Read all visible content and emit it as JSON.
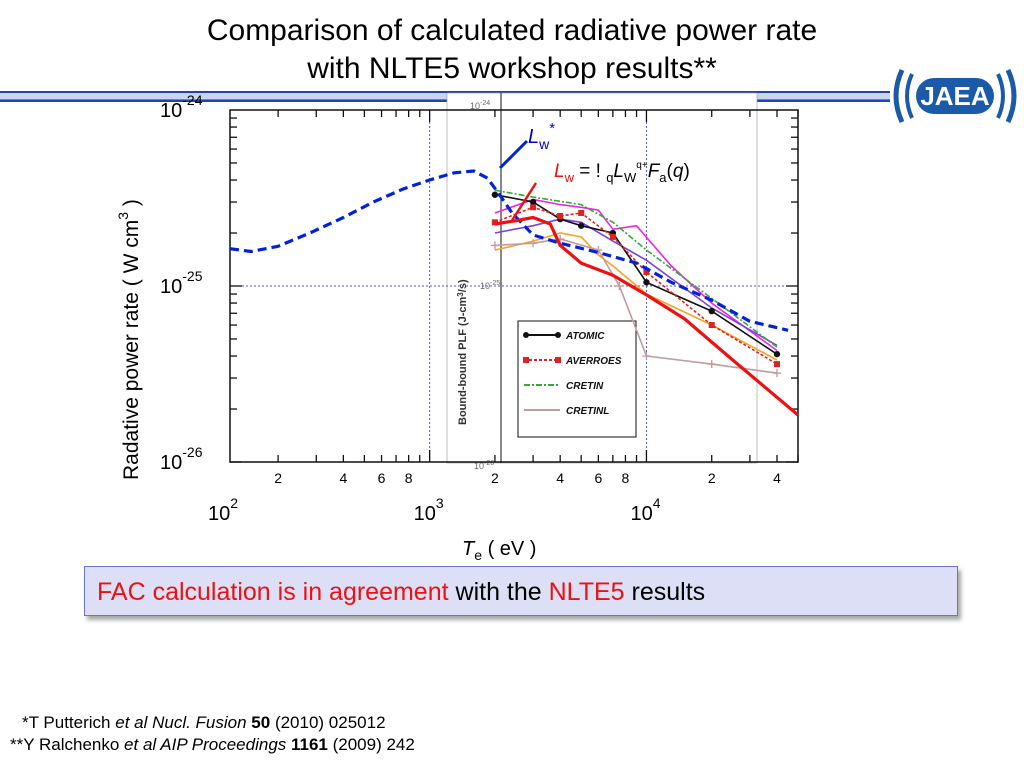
{
  "title": {
    "line1": "Comparison of calculated radiative power rate",
    "line2": "with NLTE5 workshop results**"
  },
  "logo": {
    "text": "JAEA",
    "color": "#1a5aa8"
  },
  "chart_data": {
    "type": "line",
    "title": "",
    "xlabel": {
      "main": "T",
      "sub": "e",
      "rest": " ( eV )"
    },
    "ylabel": "Radative power rate ( W  cm",
    "ylabel_sup": "3",
    "ylabel_close": " )",
    "x_scale": "log",
    "y_scale": "log",
    "xlim": [
      120,
      50000
    ],
    "ylim": [
      1e-26,
      1e-24
    ],
    "x_major_ticks": [
      {
        "value": 100,
        "base": "10",
        "exp": "2"
      },
      {
        "value": 1000,
        "base": "10",
        "exp": "3"
      },
      {
        "value": 10000,
        "base": "10",
        "exp": "4"
      }
    ],
    "x_minor_labels": [
      {
        "value": 200,
        "label": "2"
      },
      {
        "value": 400,
        "label": "4"
      },
      {
        "value": 600,
        "label": "6"
      },
      {
        "value": 800,
        "label": "8"
      },
      {
        "value": 2000,
        "label": "2"
      },
      {
        "value": 4000,
        "label": "4"
      },
      {
        "value": 6000,
        "label": "6"
      },
      {
        "value": 8000,
        "label": "8"
      },
      {
        "value": 20000,
        "label": "2"
      },
      {
        "value": 40000,
        "label": "4"
      }
    ],
    "y_major_ticks": [
      {
        "value": 1e-24,
        "base": "10",
        "exp": "-24"
      },
      {
        "value": 1e-25,
        "base": "10",
        "exp": "-25"
      },
      {
        "value": 1e-26,
        "base": "10",
        "exp": "-26"
      }
    ],
    "annotations": {
      "lw_star": {
        "main": "L",
        "sub": "w",
        "sup": "*",
        "color": "#0000cc"
      },
      "lw_formula": {
        "lhs_main": "L",
        "lhs_sub": "w",
        "eq": " = ! ",
        "sum_sub": "q",
        "rhs_main": "L",
        "rhs_sub": "W",
        "rhs_sup": "q+",
        "f_main": "F",
        "f_sub": "a",
        "arg": "(",
        "arg_var": "q",
        "arg_close": ")",
        "color": "#ee1111"
      }
    },
    "series": [
      {
        "key": "lw_star",
        "color": "#0022dd",
        "style": "dashed",
        "x": [
          120,
          150,
          200,
          280,
          400,
          550,
          750,
          1000,
          1300,
          1600,
          1850,
          2100,
          2400,
          3000,
          4000,
          6000,
          9000,
          13000,
          20000,
          30000,
          45000
        ],
        "y": [
          1.63e-25,
          1.57e-25,
          1.68e-25,
          2e-25,
          2.45e-25,
          3e-25,
          3.55e-25,
          4e-25,
          4.4e-25,
          4.5e-25,
          4.1e-25,
          3.3e-25,
          2.6e-25,
          1.95e-25,
          1.75e-25,
          1.55e-25,
          1.35e-25,
          1.05e-25,
          8.3e-26,
          6.3e-26,
          5.6e-26
        ]
      },
      {
        "key": "lw",
        "color": "#ee1111",
        "style": "solid",
        "x": [
          2000,
          2500,
          3000,
          3600,
          4000,
          5000,
          7000,
          10000,
          15000,
          25000,
          50000
        ],
        "y": [
          2.25e-25,
          2.35e-25,
          2.45e-25,
          2.25e-25,
          1.7e-25,
          1.35e-25,
          1.15e-25,
          8.9e-26,
          6.5e-26,
          3.8e-26,
          1.85e-26
        ]
      }
    ],
    "inset_series": [
      {
        "name": "ATOMIC",
        "color": "#111111",
        "marker": "circle",
        "x": [
          2000,
          3000,
          4000,
          5000,
          7000,
          10000,
          20000,
          40000
        ],
        "y": [
          3.3e-25,
          3e-25,
          2.4e-25,
          2.2e-25,
          2e-25,
          1.05e-25,
          7.2e-26,
          4.1e-26
        ]
      },
      {
        "name": "AVERROES",
        "color": "#dd2222",
        "marker": "square",
        "x": [
          2000,
          3000,
          4000,
          5000,
          7000,
          10000,
          20000,
          40000
        ],
        "y": [
          2.3e-25,
          2.8e-25,
          2.5e-25,
          2.6e-25,
          1.9e-25,
          1.2e-25,
          6e-26,
          3.6e-26
        ]
      },
      {
        "name": "CRETIN",
        "color": "#33aa33",
        "marker": "none",
        "x": [
          2000,
          3000,
          5000,
          7000,
          10000,
          20000,
          40000
        ],
        "y": [
          3.5e-25,
          3.2e-25,
          2.9e-25,
          2.3e-25,
          1.6e-25,
          8.5e-26,
          4.5e-26
        ]
      },
      {
        "name": "CRETINL",
        "color": "#c49aa0",
        "marker": "plus",
        "x": [
          2000,
          3000,
          4000,
          6000,
          7500,
          10000,
          20000,
          40000
        ],
        "y": [
          1.7e-25,
          1.75e-25,
          1.85e-25,
          1.6e-25,
          1e-25,
          4e-26,
          3.6e-26,
          3.2e-26
        ]
      }
    ],
    "inset_extra_lines": [
      {
        "color": "#ee22ee",
        "x": [
          2000,
          3000,
          4000,
          5000,
          6000,
          7000,
          9000,
          13000,
          20000,
          40000
        ],
        "y": [
          2.6e-25,
          3.1e-25,
          2.9e-25,
          2.8e-25,
          2.7e-25,
          2.1e-25,
          2.2e-25,
          1.3e-25,
          8e-26,
          4.3e-26
        ]
      },
      {
        "color": "#ffa020",
        "x": [
          2000,
          3000,
          4000,
          5000,
          6000,
          7000,
          10000,
          20000,
          40000
        ],
        "y": [
          1.6e-25,
          1.8e-25,
          2e-25,
          1.9e-25,
          1.5e-25,
          1.3e-25,
          9e-26,
          6e-26,
          3.8e-26
        ]
      },
      {
        "color": "#7744dd",
        "x": [
          2000,
          3000,
          4000,
          5000,
          7000,
          10000,
          20000,
          40000
        ],
        "y": [
          2e-25,
          2.2e-25,
          2.4e-25,
          2.3e-25,
          1.8e-25,
          1.4e-25,
          7.5e-26,
          4.6e-26
        ]
      }
    ],
    "inset": {
      "ylabel": "Bound-bound PLF (J-cm",
      "ylabel_sup": "3",
      "ylabel_close": "/s)",
      "tick_top": "10",
      "tick_top_exp": "-24",
      "tick_mid": "10",
      "tick_mid_exp": "-25",
      "tick_bot": "10",
      "tick_bot_exp": "-26"
    }
  },
  "callout": {
    "part1": "FAC calculation is in agreement",
    "part2": " with the ",
    "part3": "NLTE5",
    "part4": " results"
  },
  "references": [
    {
      "prefix": "*T Putterich ",
      "italic": "et al Nucl. Fusion ",
      "bold": "50",
      "rest": " (2010) 025012"
    },
    {
      "prefix": "**Y Ralchenko ",
      "italic": "et al AIP Proceedings ",
      "bold": "1161",
      "rest": " (2009) 242"
    }
  ]
}
